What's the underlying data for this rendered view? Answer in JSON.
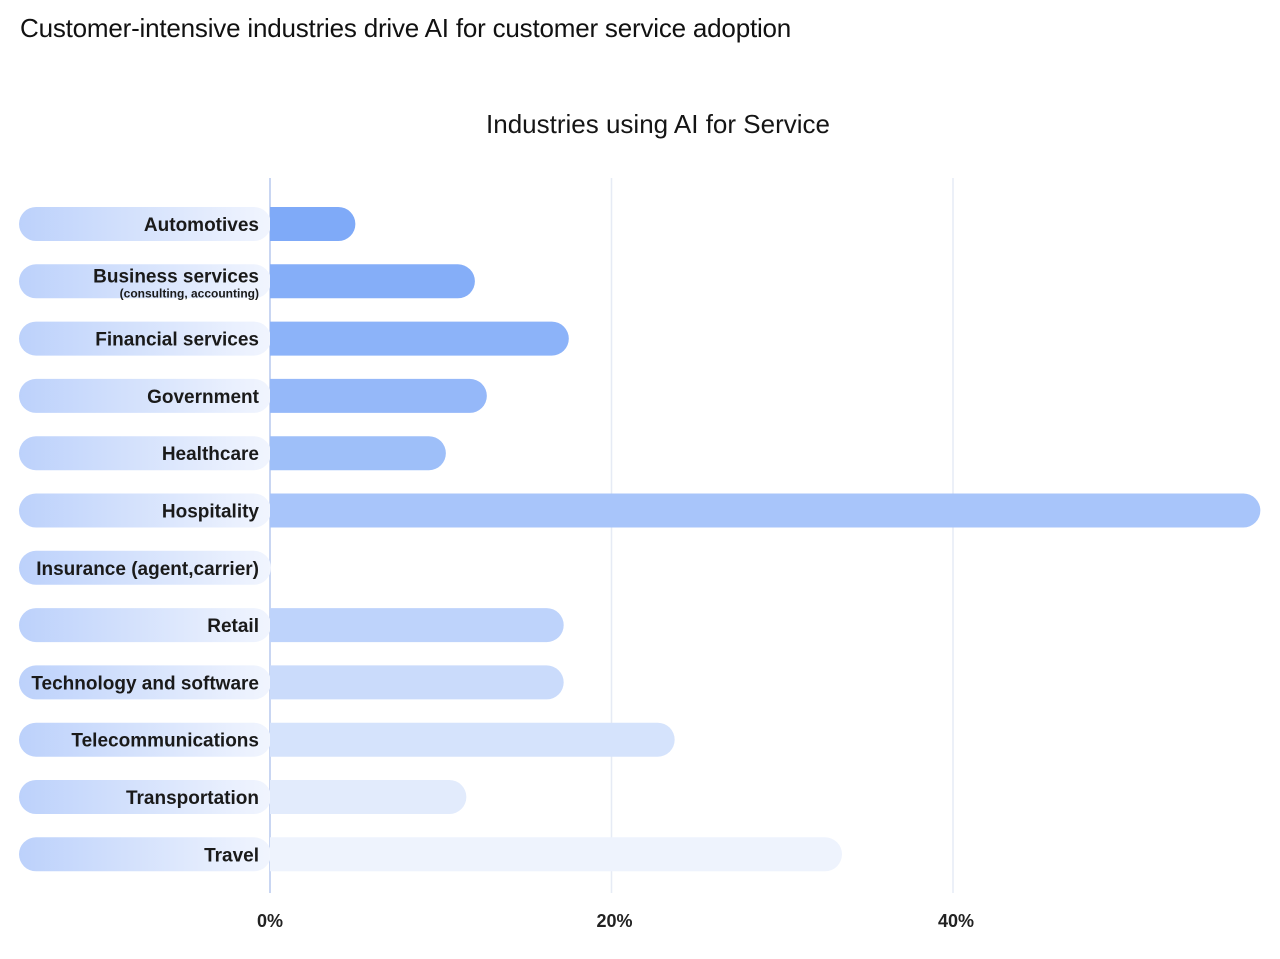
{
  "page": {
    "heading": "Customer-intensive industries drive AI for customer service adoption"
  },
  "chart_data": {
    "type": "bar",
    "orientation": "horizontal",
    "title": "Industries using AI for Service",
    "categories": [
      "Automotives",
      "Business services",
      "Financial services",
      "Government",
      "Healthcare",
      "Hospitality",
      "Insurance (agent,carrier)",
      "Retail",
      "Technology and software",
      "Telecommunications",
      "Transportation",
      "Travel"
    ],
    "category_notes": [
      "",
      "(consulting, accounting)",
      "",
      "",
      "",
      "",
      "",
      "",
      "",
      "",
      "",
      ""
    ],
    "values": [
      5,
      12,
      17.5,
      12.7,
      10.3,
      58,
      0,
      17.2,
      17.2,
      23.7,
      11.5,
      33.5
    ],
    "xlim": [
      0,
      58
    ],
    "x_ticks": [
      0,
      20,
      40
    ],
    "x_tick_labels": [
      "0%",
      "20%",
      "40%"
    ],
    "xlabel": "",
    "ylabel": "",
    "grid": true,
    "colors": {
      "bar_strong": "#7faaf8",
      "bar_light": "#eef3fd",
      "label_pill_left": "#bdd2fb",
      "label_pill_right": "#eef3fe",
      "grid": "#e6ebf5",
      "axis": "#c9d6f2"
    }
  }
}
